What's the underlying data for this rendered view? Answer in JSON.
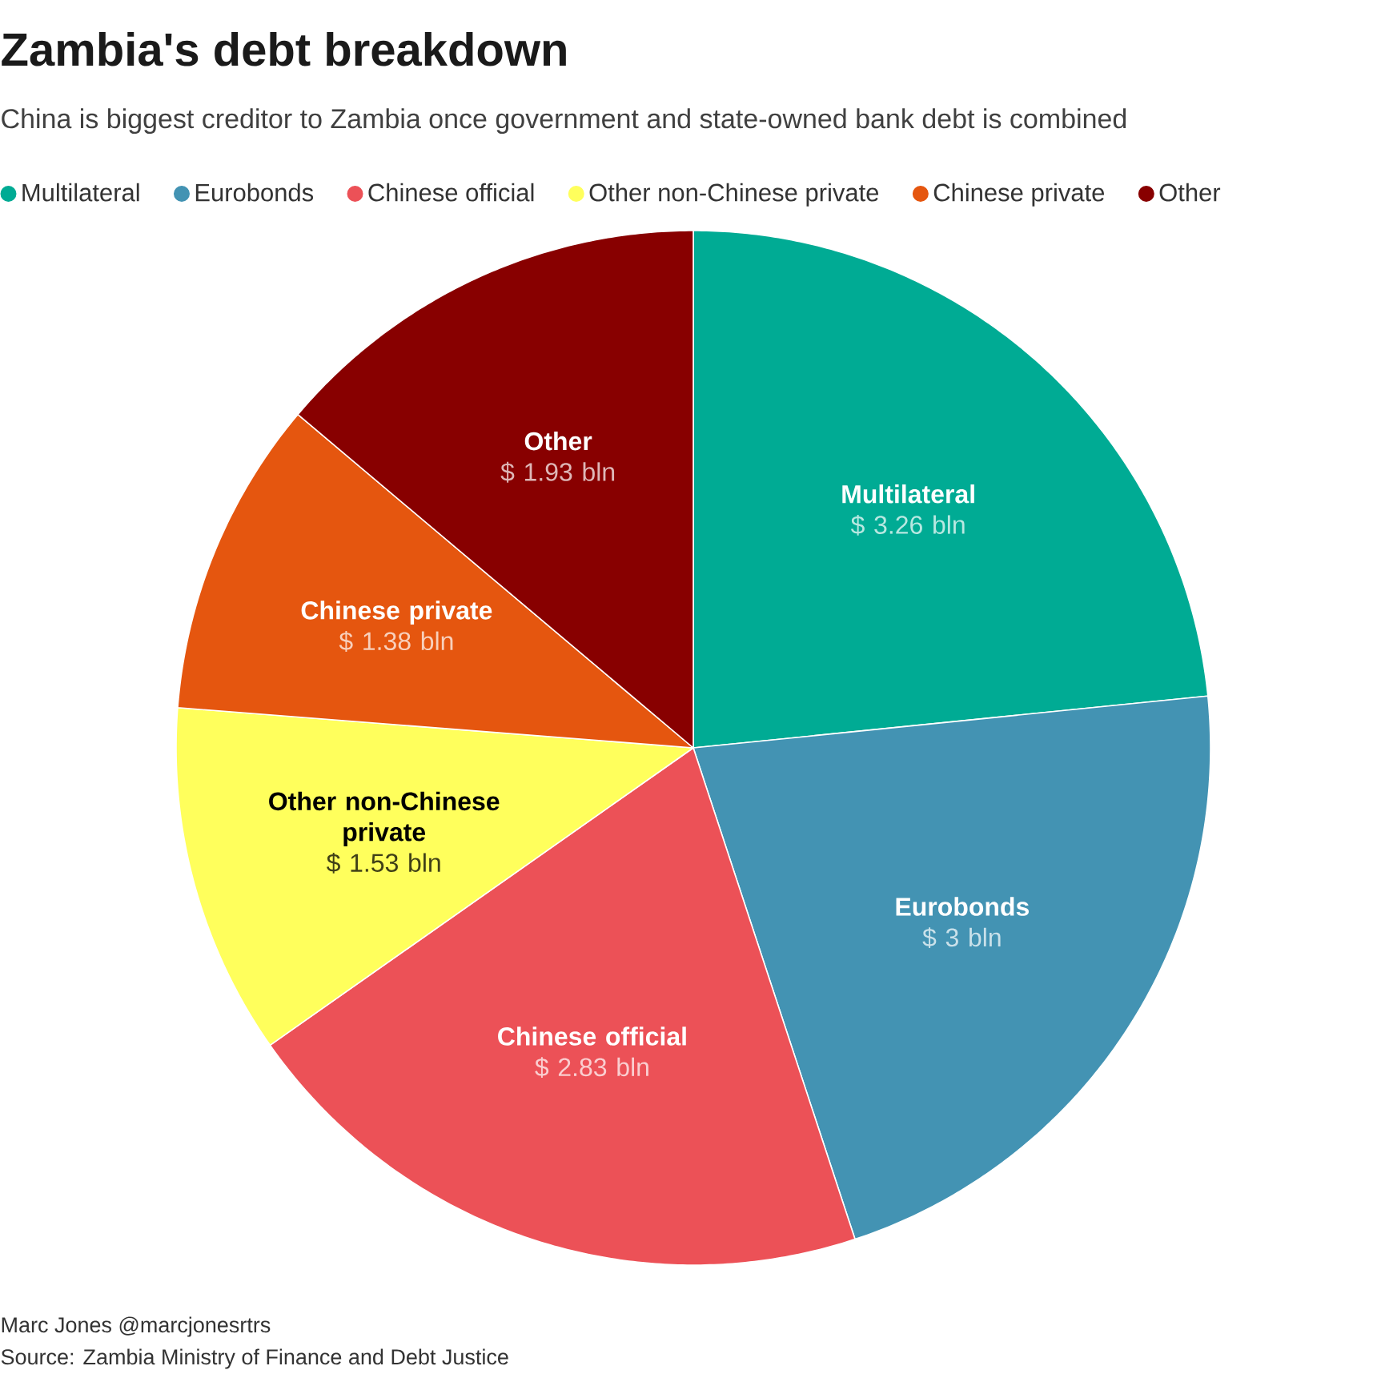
{
  "chart_data": {
    "type": "pie",
    "title": "Zambia's debt breakdown",
    "subtitle": "China is biggest creditor to Zambia once government and state-owned bank debt is combined",
    "categories": [
      "Multilateral",
      "Eurobonds",
      "Chinese official",
      "Other non-Chinese private",
      "Chinese private",
      "Other"
    ],
    "values": [
      3.26,
      3,
      2.83,
      1.53,
      1.38,
      1.93
    ],
    "colors": [
      "#00ab94",
      "#4393b3",
      "#ec5157",
      "#ffff5c",
      "#e5560f",
      "#880000"
    ],
    "value_labels": [
      "$ 3.26 bln",
      "$ 3 bln",
      "$ 2.83 bln",
      "$ 1.53 bln",
      "$ 1.38 bln",
      "$ 1.93 bln"
    ],
    "legend": "top",
    "annotations": [
      "Marc Jones @marcjonesrtrs",
      "Source: Zambia Ministry of Finance and Debt Justice"
    ]
  }
}
